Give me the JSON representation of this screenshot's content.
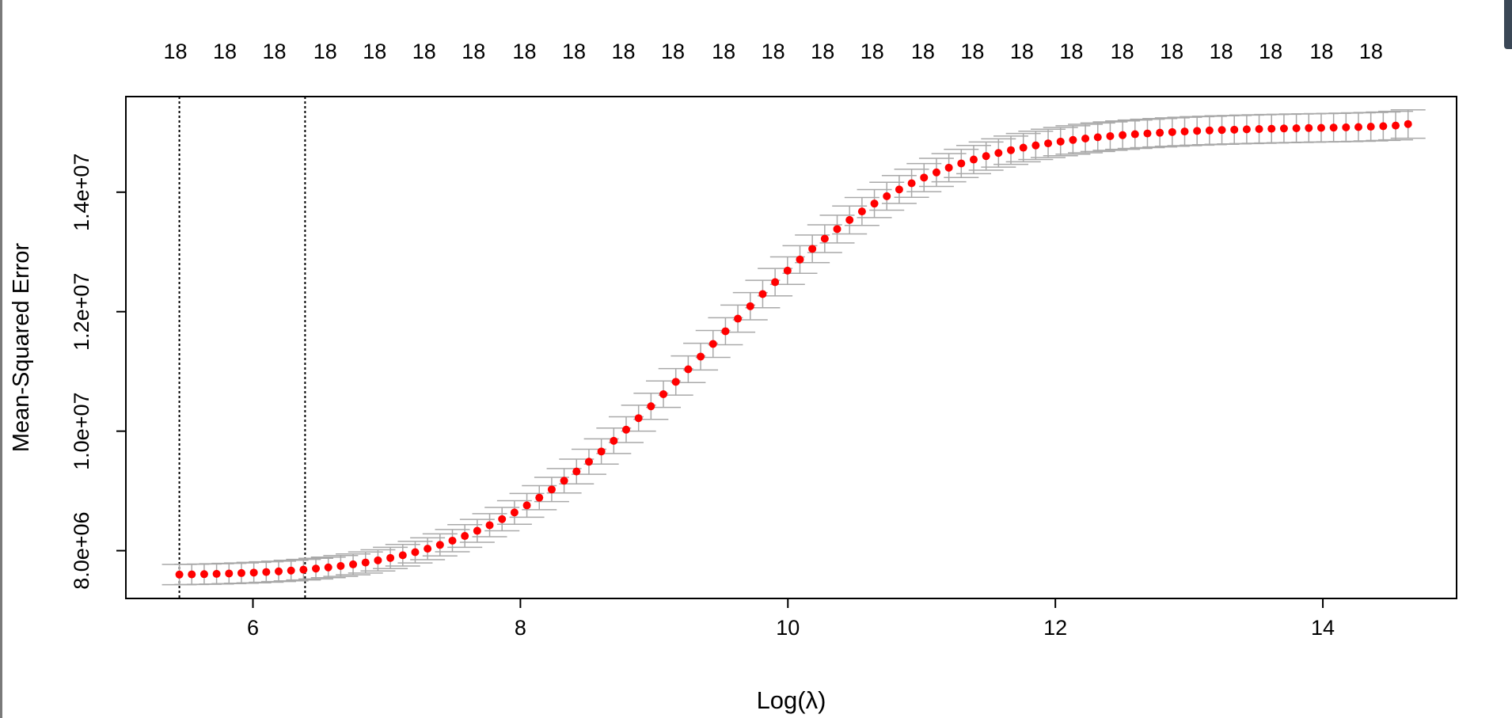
{
  "chart_data": {
    "type": "scatter",
    "title": "",
    "xlabel": "Log(λ)",
    "ylabel": "Mean-Squared Error",
    "xlim": [
      5.05,
      15.0
    ],
    "ylim": [
      7200000.0,
      15600000.0
    ],
    "x_ticks": [
      6,
      8,
      10,
      12,
      14
    ],
    "x_tick_labels": [
      "6",
      "8",
      "10",
      "12",
      "14"
    ],
    "y_ticks": [
      8000000,
      10000000,
      12000000,
      14000000
    ],
    "y_tick_labels": [
      "8.0e+06",
      "1.0e+07",
      "1.2e+07",
      "1.4e+07"
    ],
    "top_axis_labels": [
      "18",
      "18",
      "18",
      "18",
      "18",
      "18",
      "18",
      "18",
      "18",
      "18",
      "18",
      "18",
      "18",
      "18",
      "18",
      "18",
      "18",
      "18",
      "18",
      "18",
      "18",
      "18",
      "18",
      "18",
      "18"
    ],
    "top_axis_positions": [
      5.42,
      5.79,
      6.16,
      6.54,
      6.91,
      7.28,
      7.65,
      8.03,
      8.4,
      8.77,
      9.14,
      9.52,
      9.89,
      10.26,
      10.63,
      11.01,
      11.38,
      11.75,
      12.12,
      12.5,
      12.87,
      13.24,
      13.61,
      13.99,
      14.36
    ],
    "vlines": [
      5.45,
      6.39
    ],
    "series": [
      {
        "marker_color": "#ff0000",
        "errorbar_color": "#a9a9a9",
        "x_start": 5.45,
        "x_step": 0.0928,
        "y": [
          7600000,
          7603000,
          7607000,
          7612000,
          7618000,
          7625000,
          7633000,
          7643000,
          7654000,
          7667000,
          7682000,
          7700000,
          7720000,
          7744000,
          7771000,
          7802000,
          7838000,
          7878000,
          7924000,
          7975000,
          8033000,
          8097000,
          8168000,
          8246000,
          8332000,
          8426000,
          8528000,
          8639000,
          8758000,
          8887000,
          9024000,
          9170000,
          9325000,
          9488000,
          9660000,
          9839000,
          10025000,
          10218000,
          10416000,
          10619000,
          10826000,
          11036000,
          11248000,
          11460000,
          11672000,
          11883000,
          12091000,
          12295000,
          12494000,
          12687000,
          12873000,
          13052000,
          13222000,
          13383000,
          13535000,
          13677000,
          13809000,
          13932000,
          14045000,
          14149000,
          14244000,
          14331000,
          14410000,
          14481000,
          14546000,
          14604000,
          14656000,
          14703000,
          14745000,
          14783000,
          14817000,
          14847000,
          14874000,
          14898000,
          14919000,
          14938000,
          14955000,
          14970000,
          14983000,
          14995000,
          15006000,
          15016000,
          15025000,
          15033000,
          15040000,
          15046000,
          15052000,
          15057000,
          15062000,
          15066000,
          15070000,
          15074000,
          15077000,
          15081000,
          15085000,
          15090000,
          15096000,
          15104000,
          15115000,
          15140000
        ],
        "se": [
          170000,
          170000,
          170000,
          170000,
          170000,
          170000,
          171000,
          171000,
          171000,
          172000,
          172000,
          173000,
          173000,
          174000,
          175000,
          176000,
          177000,
          178000,
          180000,
          181000,
          183000,
          185000,
          187000,
          189000,
          191000,
          193000,
          195000,
          197000,
          199000,
          201000,
          203000,
          205000,
          207000,
          209000,
          211000,
          213000,
          215000,
          217000,
          219000,
          221000,
          222000,
          223000,
          224000,
          225000,
          226000,
          227000,
          228000,
          229000,
          229000,
          230000,
          231000,
          231000,
          232000,
          232000,
          233000,
          233000,
          234000,
          234000,
          234000,
          235000,
          235000,
          235000,
          236000,
          236000,
          236000,
          236000,
          237000,
          237000,
          237000,
          237000,
          237000,
          237000,
          238000,
          238000,
          238000,
          238000,
          238000,
          238000,
          238000,
          238000,
          238000,
          238000,
          238000,
          238000,
          238000,
          238000,
          238000,
          238000,
          238000,
          238000,
          238000,
          238000,
          238000,
          238000,
          238000,
          238000,
          238000,
          238000,
          238000,
          238000
        ]
      }
    ]
  }
}
